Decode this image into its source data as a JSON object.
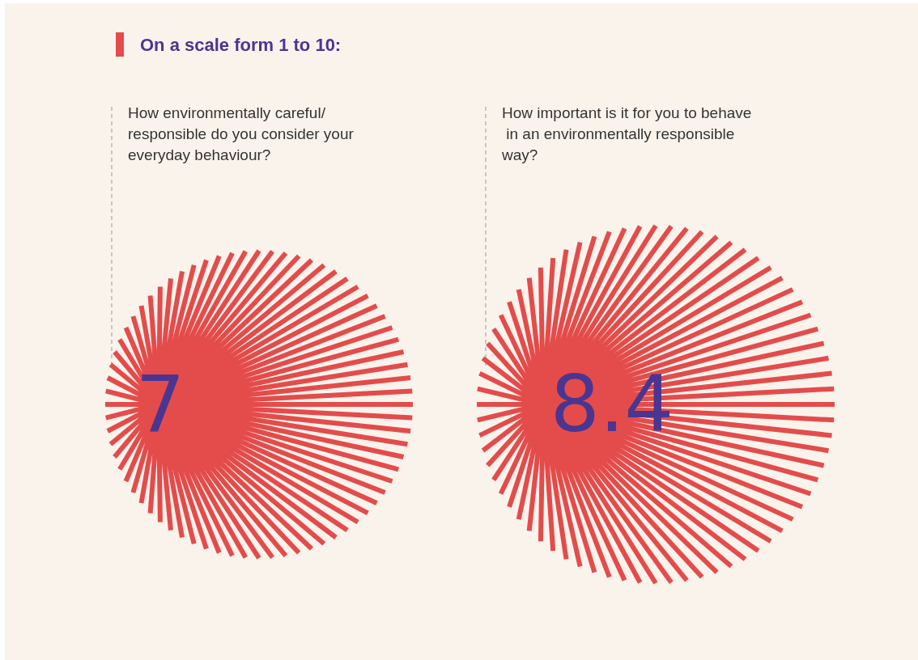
{
  "chart_data": [
    {
      "type": "other",
      "title": "On a scale form 1 to 10:",
      "subtitle": "How environmentally careful/ responsible do you consider your everyday behaviour?",
      "values": [
        7
      ],
      "data_labels": true
    },
    {
      "type": "other",
      "subtitle": "How important is it for you to behave in an environmentally responsible way?",
      "values": [
        8.4
      ],
      "data_labels": true
    }
  ]
}
